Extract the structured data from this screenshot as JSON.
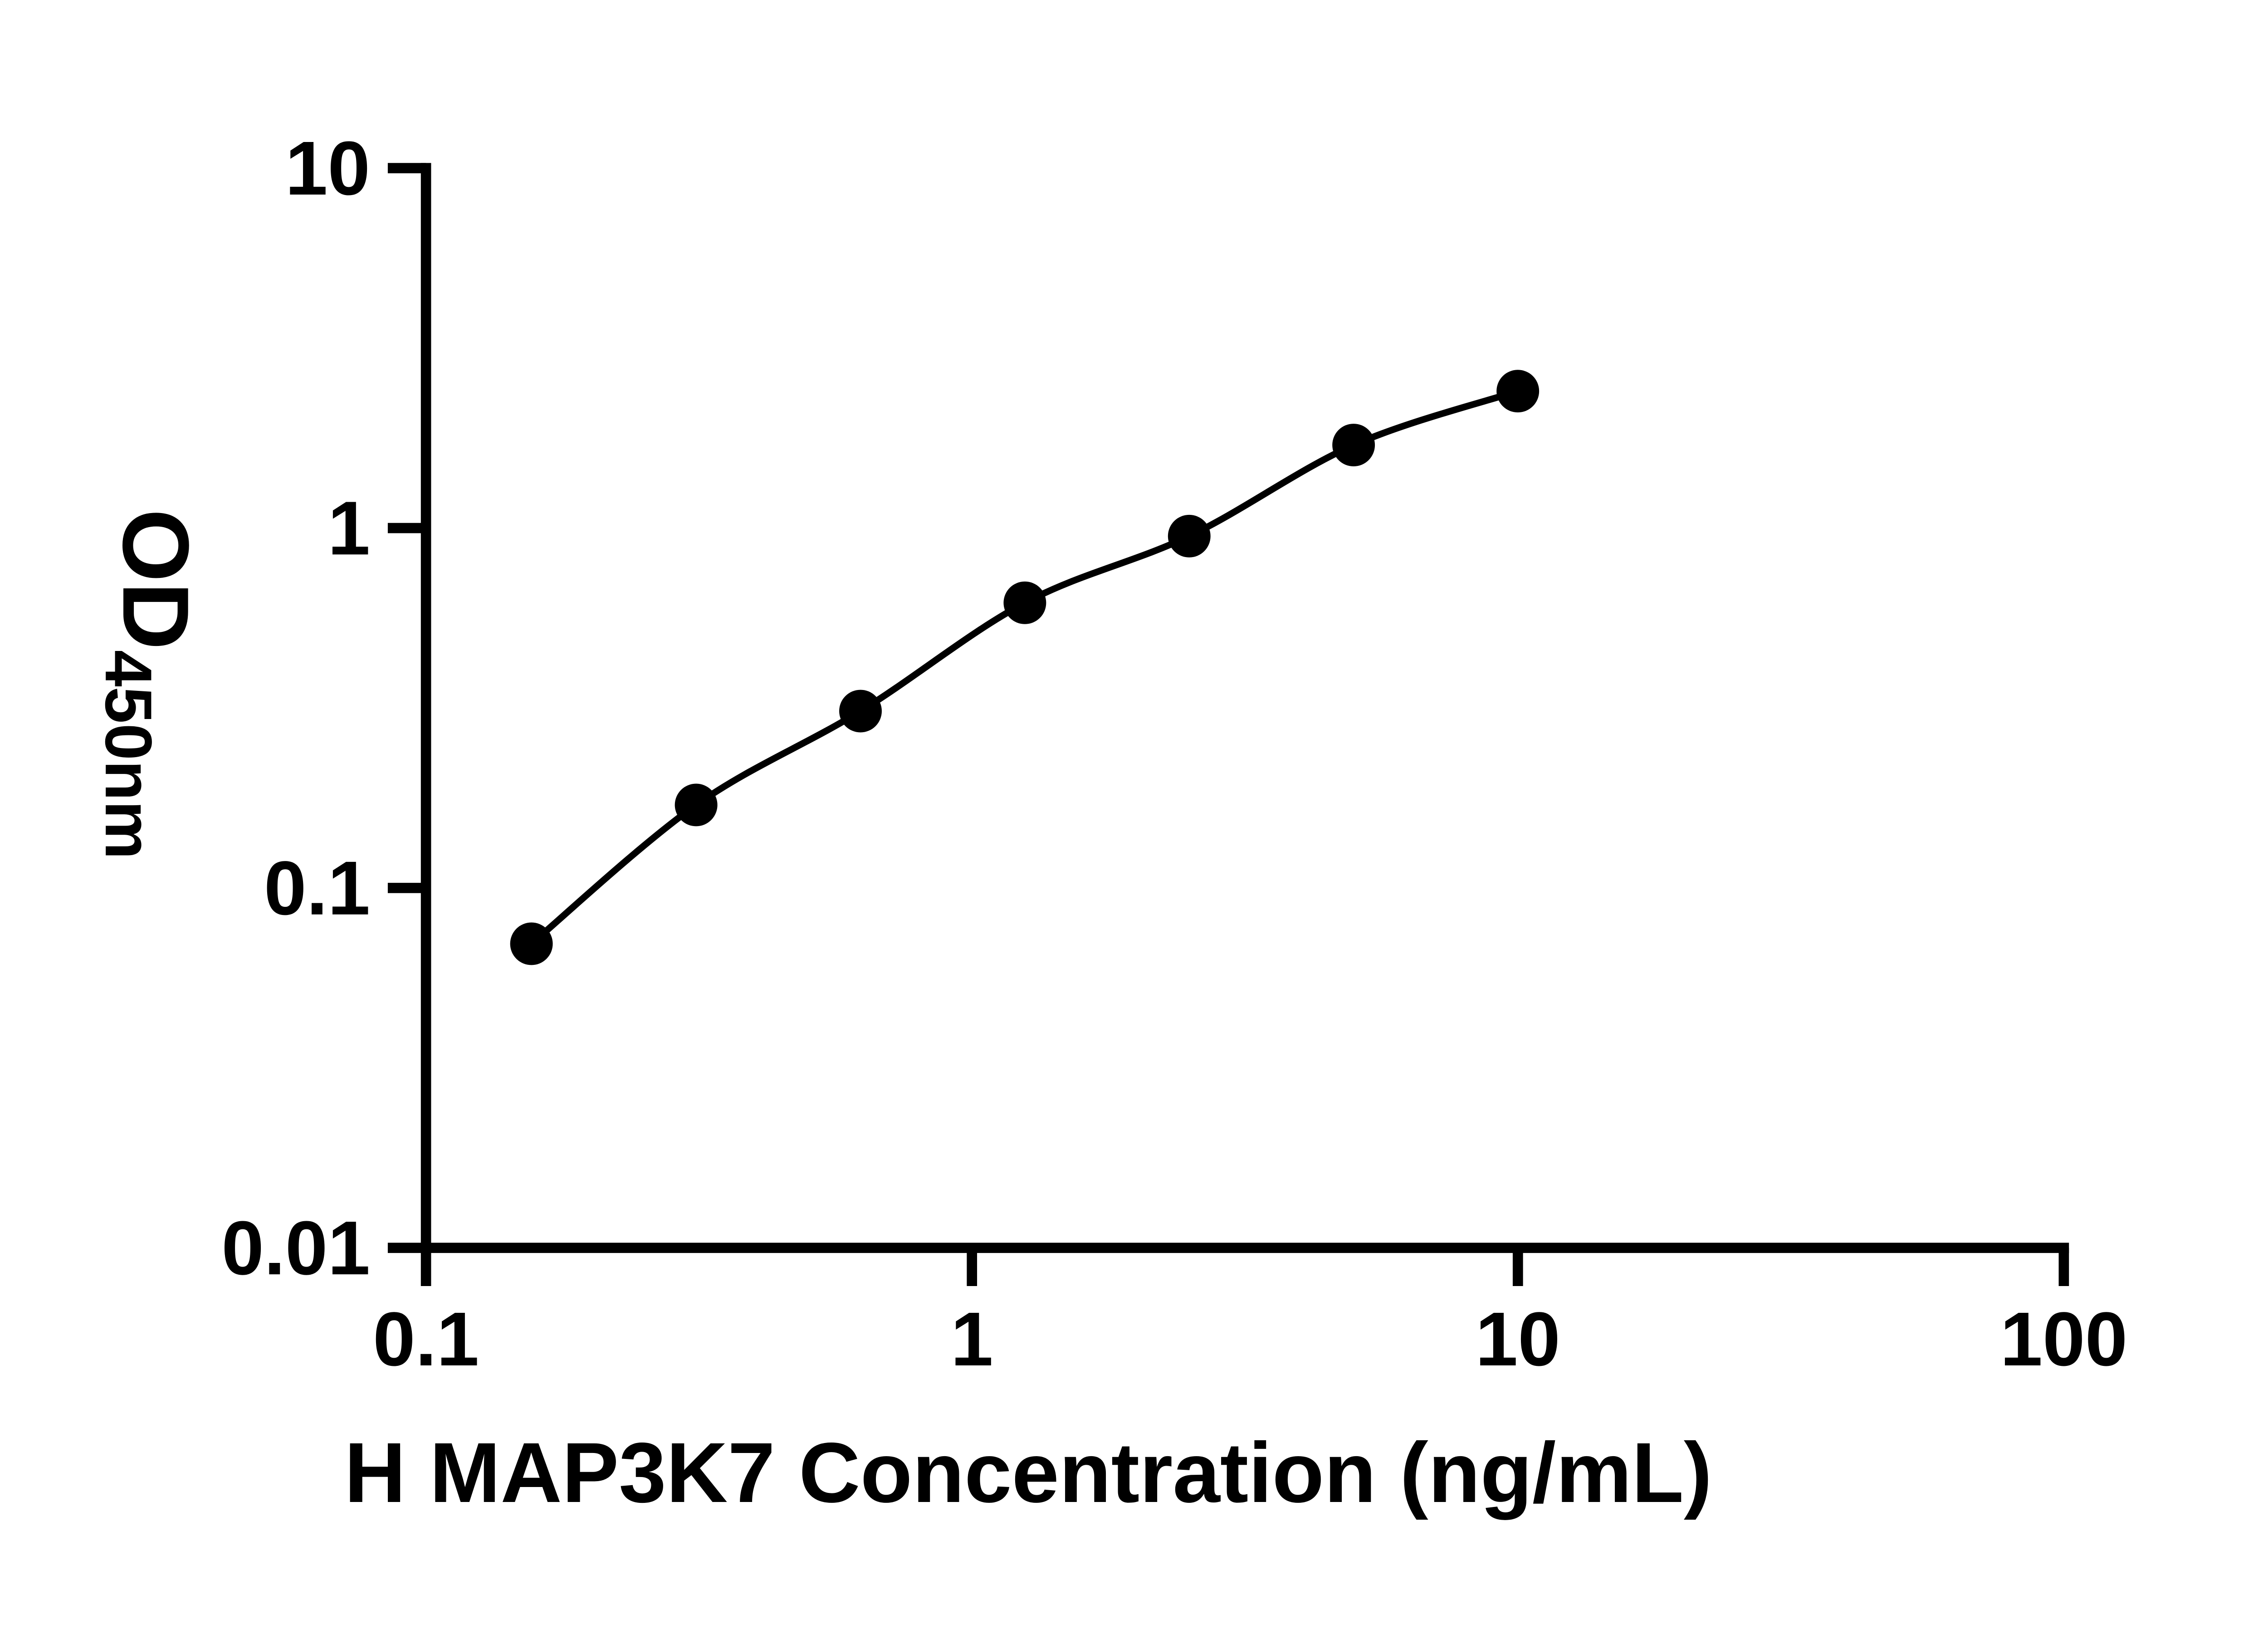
{
  "chart_data": {
    "type": "scatter",
    "curve": "smooth fit line through points",
    "x": [
      0.156,
      0.3125,
      0.625,
      1.25,
      2.5,
      5,
      10
    ],
    "y": [
      0.07,
      0.17,
      0.31,
      0.62,
      0.95,
      1.7,
      2.4
    ],
    "title": "",
    "xlabel": "H MAP3K7 Concentration (ng/mL)",
    "ylabel_main": "OD",
    "ylabel_sub": "450nm",
    "x_scale": "log",
    "y_scale": "log",
    "xlim": [
      0.1,
      100
    ],
    "ylim": [
      0.01,
      10
    ],
    "x_ticks": [
      {
        "value": 0.1,
        "label": "0.1"
      },
      {
        "value": 1,
        "label": "1"
      },
      {
        "value": 10,
        "label": "10"
      },
      {
        "value": 100,
        "label": "100"
      }
    ],
    "y_ticks": [
      {
        "value": 0.01,
        "label": "0.01"
      },
      {
        "value": 0.1,
        "label": "0.1"
      },
      {
        "value": 1,
        "label": "1"
      },
      {
        "value": 10,
        "label": "10"
      }
    ],
    "grid": false,
    "legend": "none",
    "marker_color": "#000000",
    "line_color": "#000000",
    "axis_color": "#000000",
    "background": "#ffffff"
  }
}
